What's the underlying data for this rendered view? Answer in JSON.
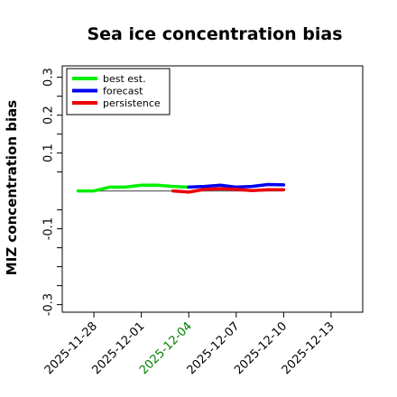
{
  "chart_data": {
    "type": "line",
    "title": "Sea ice concentration bias",
    "xlabel": "",
    "ylabel": "MIZ concentration bias",
    "xlim": [
      "2025-11-26",
      "2025-12-15"
    ],
    "ylim": [
      -0.32,
      0.33
    ],
    "yticks": [
      {
        "value": 0.3,
        "label": "0.3"
      },
      {
        "value": 0.25,
        "label": ""
      },
      {
        "value": 0.2,
        "label": "0.2"
      },
      {
        "value": 0.15,
        "label": ""
      },
      {
        "value": 0.1,
        "label": "0.1"
      },
      {
        "value": 0.05,
        "label": ""
      },
      {
        "value": -0.05,
        "label": ""
      },
      {
        "value": -0.1,
        "label": "-0.1"
      },
      {
        "value": -0.15,
        "label": ""
      },
      {
        "value": -0.2,
        "label": ""
      },
      {
        "value": -0.25,
        "label": ""
      },
      {
        "value": -0.3,
        "label": "-0.3"
      }
    ],
    "xticks": [
      {
        "value": "2025-11-28",
        "label": "2025-11-28",
        "color": "#000000"
      },
      {
        "value": "2025-12-01",
        "label": "2025-12-01",
        "color": "#000000"
      },
      {
        "value": "2025-12-04",
        "label": "2025-12-04",
        "color": "#008000"
      },
      {
        "value": "2025-12-07",
        "label": "2025-12-07",
        "color": "#000000"
      },
      {
        "value": "2025-12-10",
        "label": "2025-12-10",
        "color": "#000000"
      },
      {
        "value": "2025-12-13",
        "label": "2025-12-13",
        "color": "#000000"
      }
    ],
    "zero_line": true,
    "grid": false,
    "legend_position": "top-left",
    "series": [
      {
        "name": "best est.",
        "color": "#00ee00",
        "x": [
          "2025-11-27",
          "2025-11-28",
          "2025-11-29",
          "2025-11-30",
          "2025-12-01",
          "2025-12-02",
          "2025-12-03",
          "2025-12-04"
        ],
        "y": [
          0.0,
          0.0,
          0.01,
          0.01,
          0.015,
          0.015,
          0.012,
          0.01
        ]
      },
      {
        "name": "forecast",
        "color": "#0000ee",
        "x": [
          "2025-12-04",
          "2025-12-05",
          "2025-12-06",
          "2025-12-07",
          "2025-12-08",
          "2025-12-09",
          "2025-12-10"
        ],
        "y": [
          0.01,
          0.012,
          0.015,
          0.01,
          0.012,
          0.017,
          0.016
        ]
      },
      {
        "name": "persistence",
        "color": "#ee0000",
        "x": [
          "2025-12-03",
          "2025-12-04",
          "2025-12-05",
          "2025-12-06",
          "2025-12-07",
          "2025-12-08",
          "2025-12-09",
          "2025-12-10"
        ],
        "y": [
          0.0,
          -0.003,
          0.004,
          0.006,
          0.004,
          0.001,
          0.003,
          0.003
        ]
      }
    ]
  }
}
